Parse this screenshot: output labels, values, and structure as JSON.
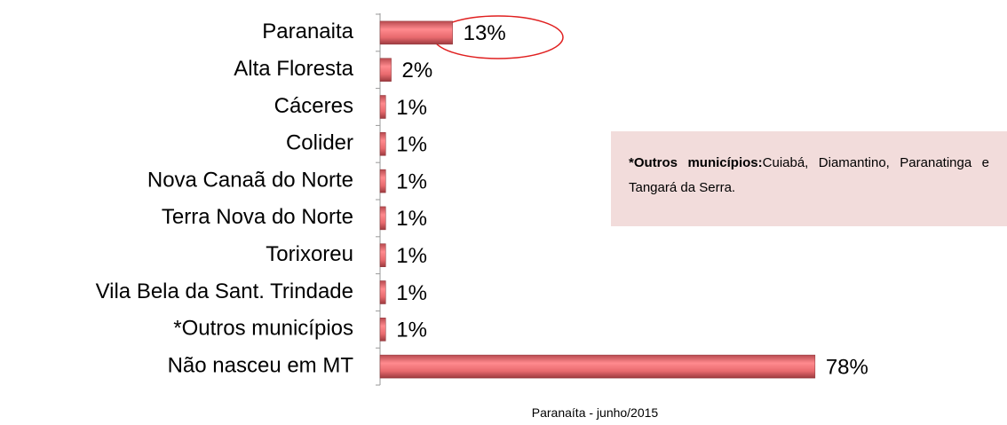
{
  "chart_data": {
    "type": "bar",
    "orientation": "horizontal",
    "categories": [
      "Paranaita",
      "Alta Floresta",
      "Cáceres",
      "Colider",
      "Nova Canaã do Norte",
      "Terra Nova do Norte",
      "Torixoreu",
      "Vila Bela da Sant. Trindade",
      "*Outros municípios",
      "Não nasceu em MT"
    ],
    "values": [
      13,
      2,
      1,
      1,
      1,
      1,
      1,
      1,
      1,
      78
    ],
    "value_labels": [
      "13%",
      "2%",
      "1%",
      "1%",
      "1%",
      "1%",
      "1%",
      "1%",
      "1%",
      "78%"
    ],
    "color": "#e86a6e",
    "note": {
      "label": "*Outros municípios:",
      "text": "Cuiabá, Diamantino, Paranatinga e Tangará da Serra."
    },
    "source": "Paranaíta - junho/2015"
  }
}
